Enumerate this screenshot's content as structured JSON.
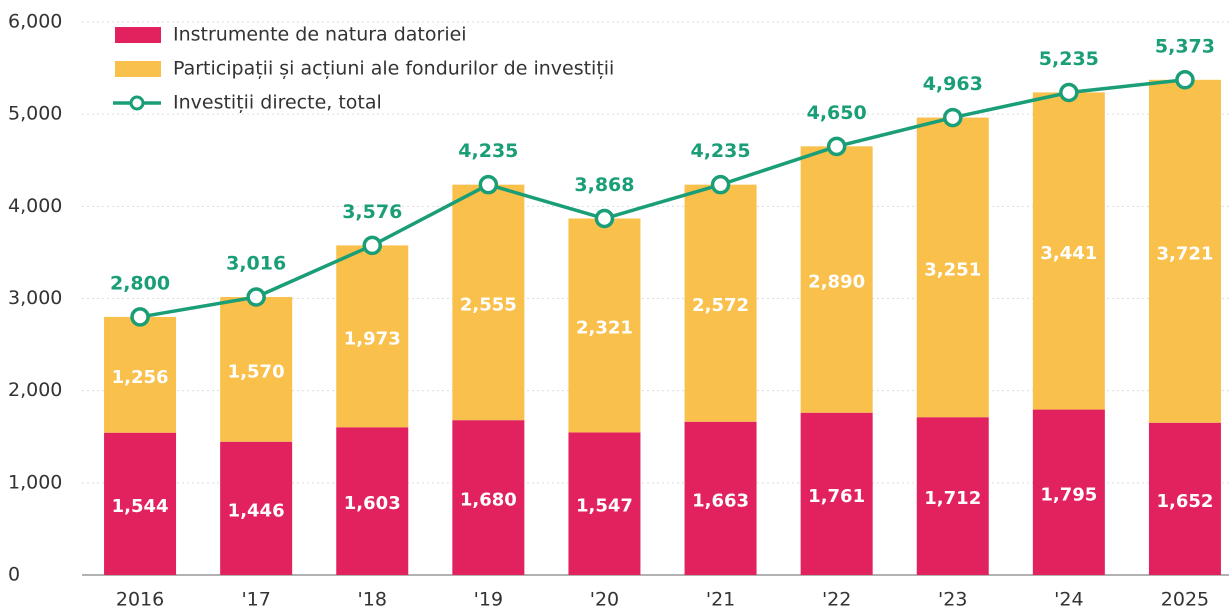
{
  "chart_data": {
    "type": "bar",
    "stacked": true,
    "categories": [
      "2016",
      "'17",
      "'18",
      "'19",
      "'20",
      "'21",
      "'22",
      "'23",
      "'24",
      "2025"
    ],
    "series": [
      {
        "name": "Instrumente de natura datoriei",
        "color": "#e2215f",
        "values": [
          1544,
          1446,
          1603,
          1680,
          1547,
          1663,
          1761,
          1712,
          1795,
          1652
        ],
        "value_labels": [
          "1,544",
          "1,446",
          "1,603",
          "1,680",
          "1,547",
          "1,663",
          "1,761",
          "1,712",
          "1,795",
          "1,652"
        ]
      },
      {
        "name": "Participații și acțiuni ale fondurilor de investiții",
        "color": "#f9c04b",
        "values": [
          1256,
          1570,
          1973,
          2555,
          2321,
          2572,
          2890,
          3251,
          3441,
          3721
        ],
        "value_labels": [
          "1,256",
          "1,570",
          "1,973",
          "2,555",
          "2,321",
          "2,572",
          "2,890",
          "3,251",
          "3,441",
          "3,721"
        ]
      },
      {
        "name": "Investiții directe, total",
        "type": "line",
        "color": "#1a9e77",
        "values": [
          2800,
          3016,
          3576,
          4235,
          3868,
          4235,
          4650,
          4963,
          5235,
          5373
        ],
        "value_labels": [
          "2,800",
          "3,016",
          "3,576",
          "4,235",
          "3,868",
          "4,235",
          "4,650",
          "4,963",
          "5,235",
          "5,373"
        ]
      }
    ],
    "ylim": [
      0,
      6000
    ],
    "yticks": [
      0,
      {
        "value": 1000,
        "label": "1,000"
      },
      {
        "value": 2000,
        "label": "2,000"
      },
      {
        "value": 3000,
        "label": "3,000"
      },
      {
        "value": 4000,
        "label": "4,000"
      },
      {
        "value": 5000,
        "label": "5,000"
      },
      {
        "value": 6000,
        "label": "6,000"
      }
    ],
    "grid": true,
    "legend": "top-left"
  }
}
